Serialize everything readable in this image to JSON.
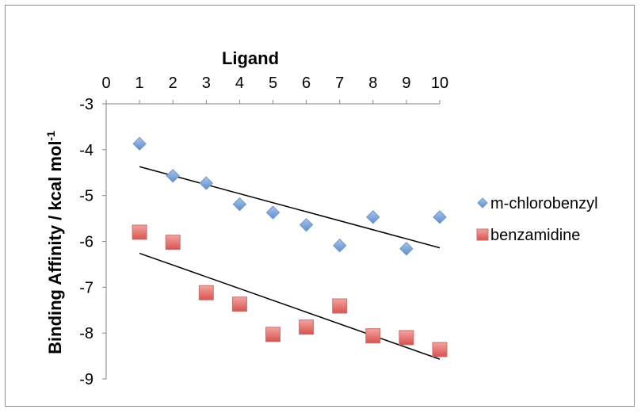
{
  "chart_data": {
    "type": "scatter",
    "title": "",
    "xlabel": "Ligand",
    "ylabel": "Binding Affinity / kcal mol",
    "ylabel_superscript": "-1",
    "xlim": [
      0,
      10
    ],
    "ylim": [
      -9,
      -3
    ],
    "x_ticks": [
      0,
      1,
      2,
      3,
      4,
      5,
      6,
      7,
      8,
      9,
      10
    ],
    "y_ticks": [
      -3,
      -4,
      -5,
      -6,
      -7,
      -8,
      -9
    ],
    "x_axis_position": "top",
    "grid": false,
    "legend_position": "right",
    "series": [
      {
        "name": "m-chlorobenzyl",
        "marker": "diamond",
        "color": "#4f81bd",
        "x": [
          1,
          2,
          3,
          4,
          5,
          6,
          7,
          8,
          9,
          10
        ],
        "y": [
          -3.87,
          -4.57,
          -4.73,
          -5.19,
          -5.37,
          -5.64,
          -6.09,
          -5.47,
          -6.16,
          -5.47
        ],
        "trendline": {
          "x": [
            1,
            10
          ],
          "y": [
            -4.37,
            -6.14
          ]
        }
      },
      {
        "name": "benzamidine",
        "marker": "square",
        "color": "#e05a5a",
        "x": [
          1,
          2,
          3,
          4,
          5,
          6,
          7,
          8,
          9,
          10
        ],
        "y": [
          -5.8,
          -6.02,
          -7.12,
          -7.37,
          -8.03,
          -7.87,
          -7.41,
          -8.06,
          -8.1,
          -8.36
        ],
        "trendline": {
          "x": [
            1,
            10
          ],
          "y": [
            -6.26,
            -8.57
          ]
        }
      }
    ]
  }
}
